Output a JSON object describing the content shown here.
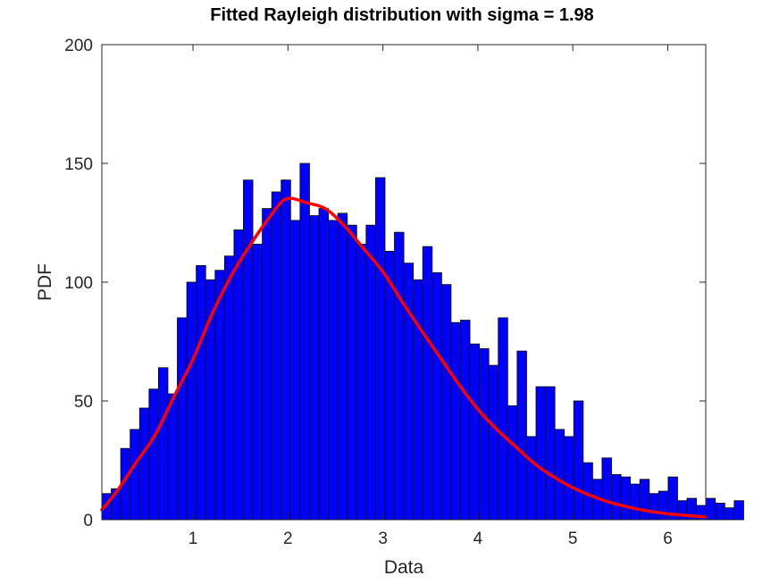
{
  "chart_data": {
    "type": "bar",
    "title": "Fitted Rayleigh distribution with sigma = 1.98",
    "xlabel": "Data",
    "ylabel": "PDF",
    "xlim": [
      0.04,
      6.4
    ],
    "ylim": [
      0,
      200
    ],
    "xticks": [
      1,
      2,
      3,
      4,
      5,
      6
    ],
    "yticks": [
      0,
      50,
      100,
      150,
      200
    ],
    "grid": false,
    "legend": "none",
    "colors": {
      "bars": "#0000ff",
      "bar_edge": "#000000",
      "fit_line": "#ff0000"
    },
    "histogram": {
      "bin_start": 0.04,
      "bin_width": 0.0994,
      "counts": [
        11,
        13,
        30,
        38,
        47,
        55,
        64,
        53,
        85,
        100,
        107,
        101,
        105,
        111,
        122,
        143,
        116,
        131,
        138,
        143,
        126,
        150,
        128,
        131,
        126,
        129,
        124,
        116,
        124,
        144,
        113,
        121,
        108,
        101,
        115,
        104,
        99,
        83,
        84,
        74,
        72,
        65,
        85,
        48,
        71,
        35,
        56,
        56,
        38,
        35,
        50,
        24,
        17,
        26,
        19,
        18,
        15,
        17,
        11,
        12,
        18,
        8,
        9,
        6,
        9,
        7,
        5,
        8
      ]
    },
    "fit": {
      "name": "Rayleigh fit",
      "sigma": 1.98,
      "x": [
        0.04,
        0.2,
        0.4,
        0.6,
        0.8,
        1.0,
        1.2,
        1.4,
        1.6,
        1.8,
        1.98,
        2.2,
        2.4,
        2.6,
        2.8,
        3.0,
        3.2,
        3.4,
        3.6,
        3.8,
        4.0,
        4.2,
        4.4,
        4.6,
        4.8,
        5.0,
        5.2,
        5.4,
        5.6,
        5.8,
        6.0,
        6.2,
        6.4
      ],
      "y": [
        4.2,
        12,
        24,
        35.6,
        51.8,
        67.5,
        86.5,
        102.5,
        115.5,
        127,
        135,
        133.4,
        130.8,
        123.5,
        114,
        104.4,
        92,
        80,
        68.5,
        57,
        46.5,
        38,
        30.7,
        23.5,
        18,
        13.5,
        10,
        7.2,
        5.2,
        3.6,
        2.5,
        1.8,
        1.2
      ]
    }
  }
}
